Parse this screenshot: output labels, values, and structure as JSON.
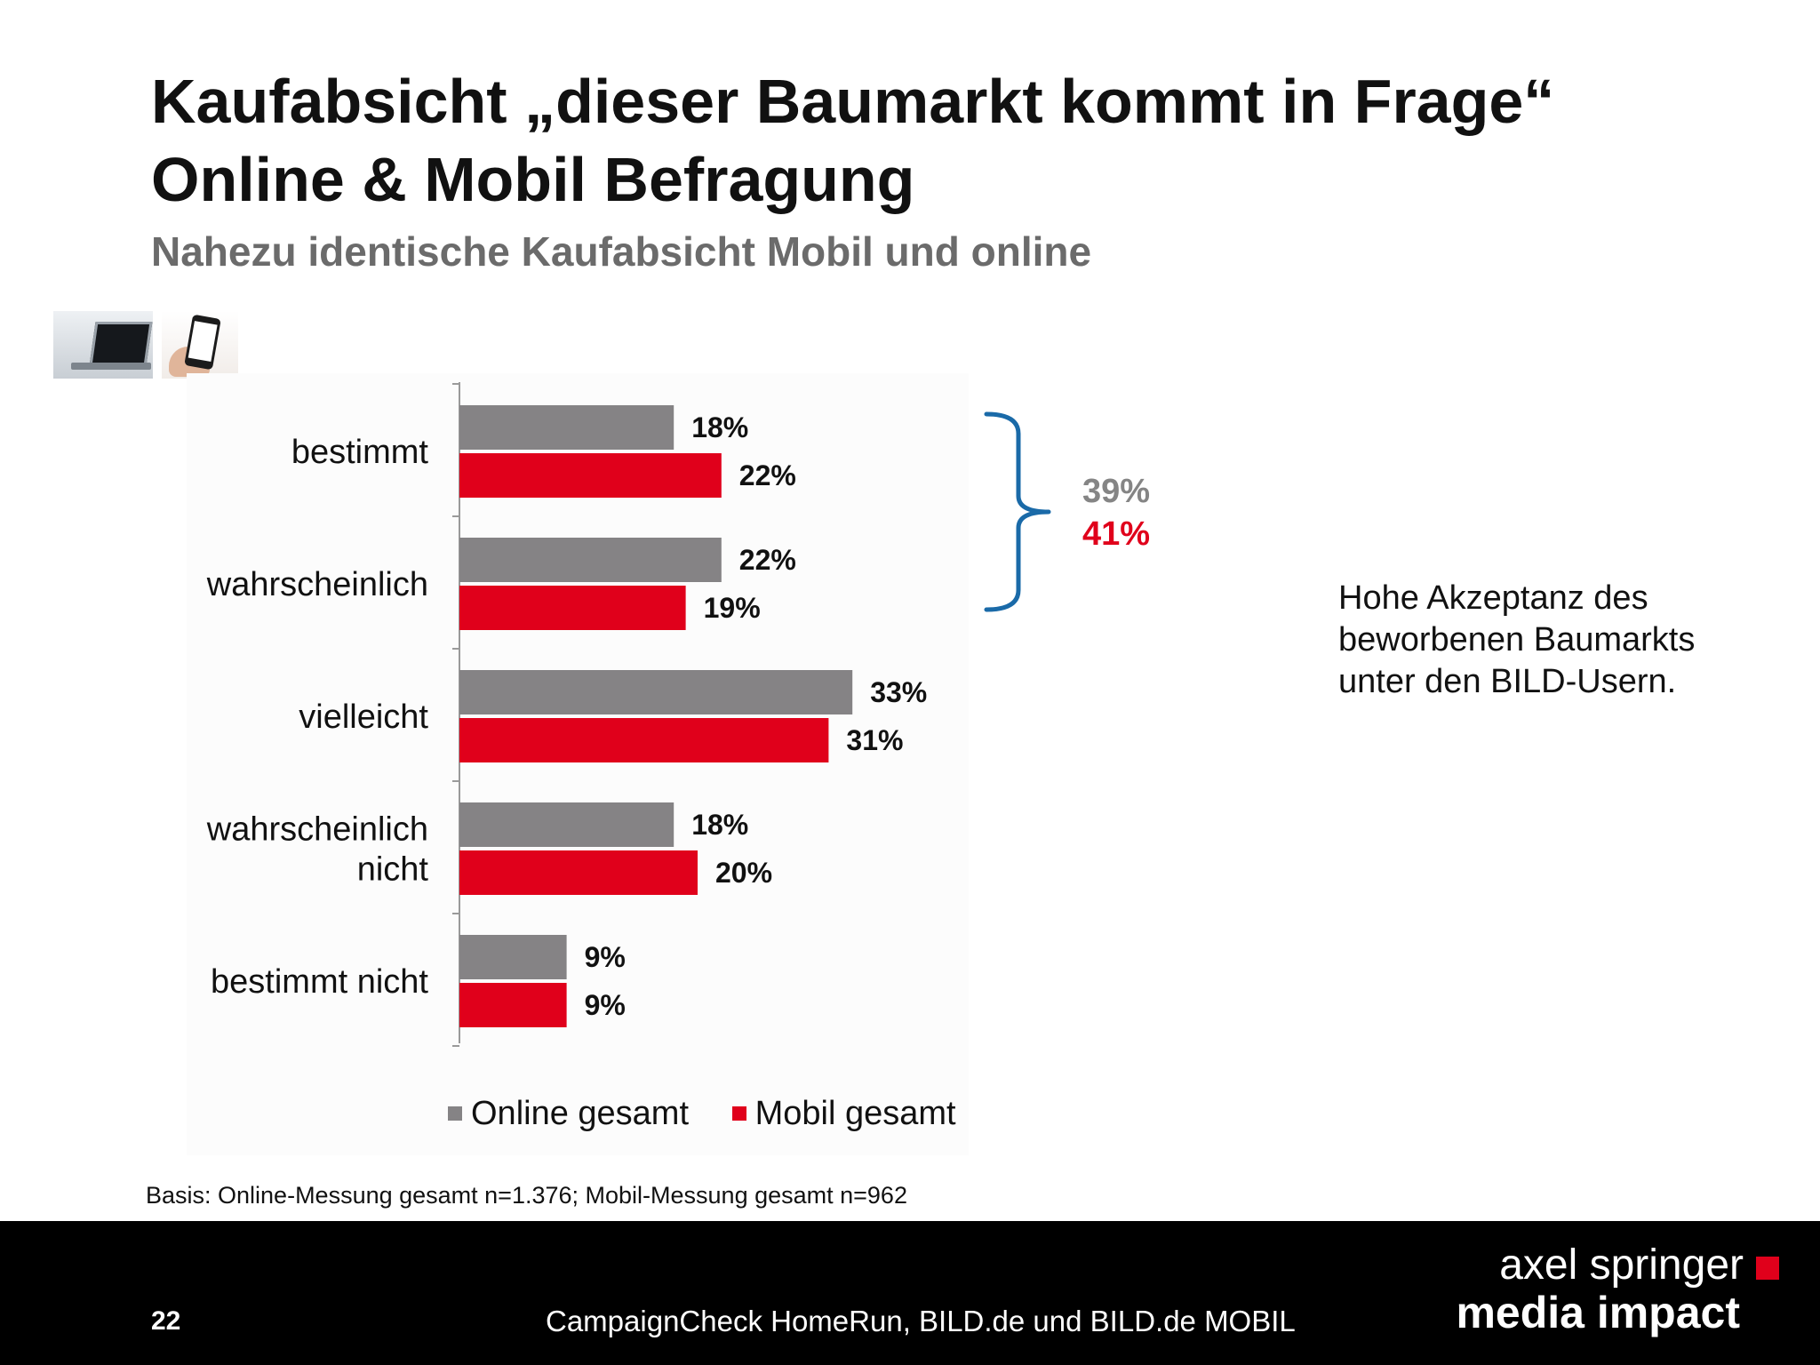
{
  "slide": {
    "title_line1": "Kaufabsicht „dieser Baumarkt kommt in Frage“",
    "title_line2": "Online & Mobil Befragung",
    "subtitle": "Nahezu identische Kaufabsicht Mobil und online",
    "note": "Hohe Akzeptanz des beworbenen Baumarkts unter den BILD-Usern.",
    "footnote": "Basis: Online-Messung gesamt n=1.376; Mobil-Messung gesamt n=962",
    "page_number": "22",
    "footer_text": "CampaignCheck HomeRun, BILD.de und BILD.de MOBIL",
    "logo_line1": "axel springer",
    "logo_line2": "media impact"
  },
  "icons": [
    "laptop-icon",
    "smartphone-icon"
  ],
  "brace": {
    "group": [
      "bestimmt",
      "wahrscheinlich"
    ],
    "online_total": "39%",
    "mobil_total": "41%",
    "color": "#1a6aa8"
  },
  "chart_data": {
    "type": "bar",
    "orientation": "horizontal",
    "categories": [
      "bestimmt",
      "wahrscheinlich",
      "vielleicht",
      "wahrscheinlich nicht",
      "bestimmt nicht"
    ],
    "category_lines": [
      [
        "bestimmt"
      ],
      [
        "wahrscheinlich"
      ],
      [
        "vielleicht"
      ],
      [
        "wahrscheinlich",
        "nicht"
      ],
      [
        "bestimmt nicht"
      ]
    ],
    "series": [
      {
        "name": "Online gesamt",
        "values": [
          18,
          22,
          33,
          18,
          9
        ],
        "labels": [
          "18%",
          "22%",
          "33%",
          "18%",
          "9%"
        ],
        "color": "#858385"
      },
      {
        "name": "Mobil gesamt",
        "values": [
          22,
          19,
          31,
          20,
          9
        ],
        "labels": [
          "22%",
          "19%",
          "31%",
          "20%",
          "9%"
        ],
        "color": "#e0001b"
      }
    ],
    "xlim": [
      0,
      40
    ],
    "value_unit": "%",
    "grid": false,
    "legend_position": "bottom"
  }
}
